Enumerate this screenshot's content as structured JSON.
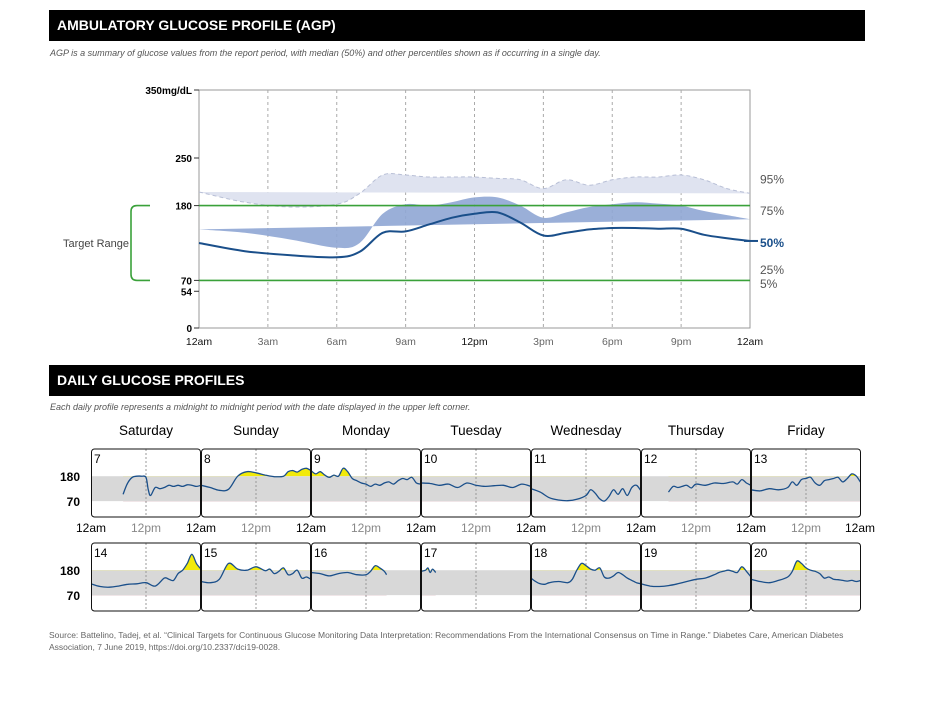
{
  "agp": {
    "header": "AMBULATORY GLUCOSE PROFILE (AGP)",
    "subtitle": "AGP is a summary of glucose values from the report period, with median (50%) and other percentiles shown as if occurring in a single day."
  },
  "daily": {
    "header": "DAILY GLUCOSE PROFILES",
    "subtitle": "Each daily profile represents a midnight to midnight period with the date displayed in the upper left corner."
  },
  "source": "Source: Battelino, Tadej, et al. “Clinical Targets for Continuous Glucose Monitoring Data Interpretation: Recommendations From the International Consensus on Time in Range.” Diabetes Care, American Diabetes Association, 7 June 2019, https://doi.org/10.2337/dci19-0028.",
  "colors": {
    "band_outer": "#dfe3f0",
    "band_inner": "#8fa6d4",
    "median": "#1a4f8a",
    "target_line": "#3aa13a",
    "target_band": "#d8d8d8",
    "high": "#f2ea0a",
    "low": "#8a1f3d"
  },
  "chart_data": [
    {
      "type": "area",
      "y_unit_label": "350mg/dL",
      "yticks": [
        {
          "v": 350,
          "label": "350"
        },
        {
          "v": 250,
          "label": "250"
        },
        {
          "v": 180,
          "label": "180"
        },
        {
          "v": 70,
          "label": "70"
        },
        {
          "v": 54,
          "label": "54"
        },
        {
          "v": 0,
          "label": "0"
        }
      ],
      "ylim": [
        0,
        350
      ],
      "xlim": [
        0,
        24
      ],
      "xticks": [
        {
          "v": 0,
          "label": "12am"
        },
        {
          "v": 3,
          "label": "3am"
        },
        {
          "v": 6,
          "label": "6am"
        },
        {
          "v": 9,
          "label": "9am"
        },
        {
          "v": 12,
          "label": "12pm"
        },
        {
          "v": 15,
          "label": "3pm"
        },
        {
          "v": 18,
          "label": "6pm"
        },
        {
          "v": 21,
          "label": "9pm"
        },
        {
          "v": 24,
          "label": "12am"
        }
      ],
      "target_range": {
        "label": "Target Range",
        "low": 70,
        "high": 180
      },
      "percentile_labels": [
        "95%",
        "75%",
        "50%",
        "25%",
        "5%"
      ],
      "x": [
        0,
        2,
        4,
        6,
        7,
        8,
        9,
        10,
        11,
        12,
        13,
        14,
        15,
        16,
        17,
        18,
        19,
        20,
        21,
        22,
        23,
        24
      ],
      "p95": [
        200,
        185,
        178,
        182,
        198,
        225,
        225,
        222,
        222,
        222,
        220,
        218,
        205,
        218,
        210,
        218,
        222,
        222,
        225,
        218,
        205,
        198
      ],
      "p75": [
        145,
        140,
        130,
        118,
        125,
        168,
        182,
        180,
        185,
        192,
        192,
        180,
        162,
        170,
        178,
        182,
        185,
        183,
        180,
        172,
        166,
        160
      ],
      "p50": [
        125,
        113,
        107,
        104,
        112,
        140,
        142,
        152,
        162,
        168,
        170,
        155,
        136,
        140,
        145,
        147,
        147,
        146,
        146,
        137,
        132,
        128
      ],
      "p25": [
        100,
        92,
        88,
        85,
        88,
        110,
        112,
        118,
        123,
        128,
        128,
        118,
        100,
        110,
        116,
        118,
        120,
        118,
        117,
        110,
        104,
        100
      ],
      "p5": [
        80,
        70,
        68,
        66,
        70,
        80,
        78,
        70,
        68,
        68,
        68,
        70,
        65,
        70,
        70,
        72,
        72,
        72,
        72,
        72,
        70,
        68
      ]
    },
    {
      "type": "line",
      "ylim": [
        0,
        300
      ],
      "target_range": [
        70,
        180
      ],
      "yticks": [
        "180",
        "70"
      ],
      "xtick_labels": [
        "12am",
        "12pm"
      ],
      "weeks": [
        {
          "day_names": [
            "Saturday",
            "Sunday",
            "Monday",
            "Tuesday",
            "Wednesday",
            "Thursday",
            "Friday"
          ],
          "days": [
            {
              "date": "7",
              "x": [
                7,
                8,
                9,
                10,
                11,
                12,
                12.5,
                13,
                14,
                15,
                16,
                17,
                18,
                19,
                20,
                21,
                22,
                23,
                24
              ],
              "y": [
                100,
                150,
                175,
                180,
                180,
                175,
                120,
                95,
                130,
                125,
                130,
                140,
                135,
                140,
                135,
                142,
                140,
                135,
                140
              ]
            },
            {
              "date": "8",
              "x": [
                0,
                2,
                4,
                6,
                8,
                10,
                12,
                14,
                16,
                18,
                19,
                20,
                21,
                22,
                23,
                24
              ],
              "y": [
                140,
                130,
                118,
                122,
                180,
                200,
                195,
                185,
                178,
                180,
                200,
                205,
                198,
                210,
                215,
                205
              ]
            },
            {
              "date": "9",
              "x": [
                0,
                1,
                2,
                3,
                4,
                5,
                6,
                7,
                8,
                9,
                10,
                11,
                12,
                13,
                14,
                15,
                16,
                17,
                18,
                19,
                20,
                21,
                22,
                23,
                24
              ],
              "y": [
                205,
                190,
                200,
                185,
                175,
                185,
                180,
                215,
                200,
                170,
                160,
                150,
                145,
                135,
                145,
                140,
                150,
                155,
                145,
                160,
                170,
                165,
                175,
                150,
                145
              ]
            },
            {
              "date": "10",
              "x": [
                0,
                2,
                4,
                6,
                8,
                10,
                12,
                14,
                16,
                18,
                20,
                22,
                24
              ],
              "y": [
                150,
                148,
                140,
                145,
                130,
                150,
                140,
                135,
                138,
                140,
                130,
                145,
                135
              ]
            },
            {
              "date": "11",
              "x": [
                0,
                2,
                4,
                6,
                8,
                10,
                12,
                13,
                14,
                15,
                16,
                17,
                18,
                19,
                20,
                21,
                22,
                23,
                24
              ],
              "y": [
                125,
                110,
                85,
                75,
                72,
                78,
                95,
                120,
                105,
                80,
                70,
                90,
                120,
                100,
                125,
                95,
                130,
                140,
                115
              ]
            },
            {
              "date": "12",
              "x": [
                6,
                7,
                8,
                9,
                10,
                11,
                12,
                14,
                16,
                18,
                20,
                21,
                22,
                23,
                24
              ],
              "y": [
                110,
                135,
                130,
                135,
                140,
                128,
                145,
                140,
                150,
                148,
                155,
                145,
                165,
                150,
                140
              ]
            },
            {
              "date": "13",
              "x": [
                0,
                2,
                4,
                6,
                8,
                9,
                10,
                11,
                12,
                13,
                14,
                15,
                16,
                17,
                18,
                19,
                20,
                21,
                22,
                23,
                24
              ],
              "y": [
                120,
                115,
                125,
                120,
                130,
                155,
                140,
                165,
                170,
                175,
                150,
                140,
                160,
                165,
                170,
                175,
                155,
                170,
                190,
                180,
                150
              ]
            }
          ]
        },
        {
          "day_names": [],
          "days": [
            {
              "date": "14",
              "x": [
                0,
                2,
                4,
                6,
                8,
                10,
                12,
                14,
                16,
                17,
                18,
                19,
                20,
                21,
                22,
                23,
                24
              ],
              "y": [
                120,
                108,
                105,
                110,
                118,
                120,
                125,
                110,
                145,
                140,
                135,
                165,
                180,
                210,
                250,
                210,
                185
              ]
            },
            {
              "date": "15",
              "x": [
                0,
                2,
                4,
                6,
                8,
                10,
                12,
                14,
                15,
                16,
                17,
                18,
                19,
                20,
                21,
                22,
                23,
                24
              ],
              "y": [
                130,
                125,
                140,
                210,
                185,
                180,
                195,
                178,
                185,
                165,
                175,
                190,
                160,
                165,
                180,
                145,
                150,
                140
              ]
            },
            {
              "date": "16",
              "x": [
                0,
                2,
                4,
                6,
                8,
                10,
                12,
                13,
                14,
                15,
                16,
                16.5
              ],
              "y": [
                170,
                165,
                155,
                165,
                170,
                160,
                160,
                175,
                200,
                190,
                175,
                160
              ]
            },
            {
              "date": "17",
              "x": [
                0,
                1,
                1.5,
                2,
                2.5,
                3,
                3.2
              ],
              "y": [
                175,
                180,
                190,
                170,
                185,
                175,
                170
              ]
            },
            {
              "date": "18",
              "x": [
                0,
                1,
                2,
                3,
                4,
                6,
                8,
                9,
                10,
                11,
                12,
                13,
                14,
                15,
                16,
                17,
                18,
                19,
                20,
                21,
                22,
                23,
                24
              ],
              "y": [
                145,
                130,
                120,
                118,
                125,
                130,
                125,
                140,
                180,
                210,
                200,
                185,
                180,
                190,
                150,
                145,
                155,
                170,
                160,
                145,
                135,
                125,
                120
              ]
            },
            {
              "date": "19",
              "x": [
                0,
                2,
                4,
                6,
                8,
                10,
                12,
                14,
                16,
                17,
                18,
                19,
                20,
                21,
                22,
                23,
                24
              ],
              "y": [
                120,
                110,
                108,
                112,
                120,
                130,
                140,
                145,
                160,
                170,
                175,
                180,
                175,
                170,
                195,
                175,
                150
              ]
            },
            {
              "date": "20",
              "x": [
                0,
                2,
                4,
                6,
                8,
                9,
                10,
                11,
                12,
                13,
                14,
                15,
                16,
                17,
                18,
                19,
                20,
                21,
                22,
                23,
                24
              ],
              "y": [
                140,
                130,
                125,
                135,
                150,
                175,
                220,
                210,
                190,
                180,
                175,
                165,
                145,
                150,
                140,
                138,
                135,
                132,
                135,
                130,
                135
              ]
            }
          ]
        }
      ]
    }
  ]
}
